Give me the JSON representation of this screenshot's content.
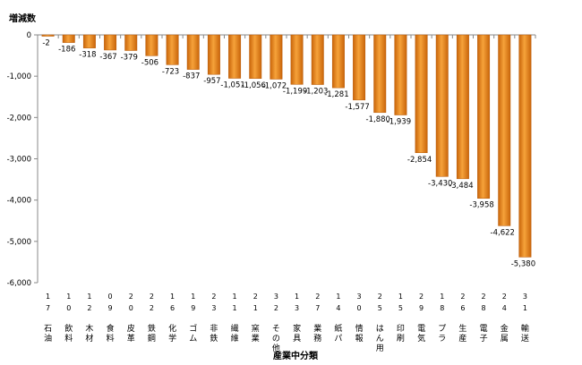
{
  "chart_data": {
    "type": "bar",
    "ylabel": "増減数",
    "xlabel": "産業中分類",
    "ylim": [
      -6000,
      0
    ],
    "yticks": [
      0,
      -1000,
      -2000,
      -3000,
      -4000,
      -5000,
      -6000
    ],
    "ytick_labels": [
      "0",
      "-1,000",
      "-2,000",
      "-3,000",
      "-4,000",
      "-5,000",
      "-6,000"
    ],
    "grid": false,
    "legend": "none",
    "bar_color": "#e8891c",
    "codes": [
      "17",
      "10",
      "12",
      "09",
      "20",
      "22",
      "16",
      "19",
      "23",
      "11",
      "21",
      "32",
      "13",
      "27",
      "14",
      "30",
      "25",
      "15",
      "29",
      "18",
      "26",
      "28",
      "24",
      "31"
    ],
    "categories": [
      "石油",
      "飲料",
      "木材",
      "食料",
      "皮革",
      "鉄鋼",
      "化学",
      "ゴム",
      "非鉄",
      "繊維",
      "窯業",
      "その他",
      "家具",
      "業務",
      "紙パ",
      "情報",
      "はん用",
      "印刷",
      "電気",
      "プラ",
      "生産",
      "電子",
      "金属",
      "輸送"
    ],
    "values": [
      -2,
      -186,
      -318,
      -367,
      -379,
      -506,
      -723,
      -837,
      -957,
      -1051,
      -1056,
      -1072,
      -1199,
      -1203,
      -1281,
      -1577,
      -1880,
      -1939,
      -2854,
      -3430,
      -3484,
      -3958,
      -4622,
      -5380
    ],
    "value_labels": [
      "-2",
      "-186",
      "-318",
      "-367",
      "-379",
      "-506",
      "-723",
      "-837",
      "-957",
      "-1,051",
      "-1,056",
      "-1,072",
      "-1,199",
      "-1,203",
      "-1,281",
      "-1,577",
      "-1,880",
      "-1,939",
      "-2,854",
      "-3,430",
      "-3,484",
      "-3,958",
      "-4,622",
      "-5,380"
    ]
  }
}
